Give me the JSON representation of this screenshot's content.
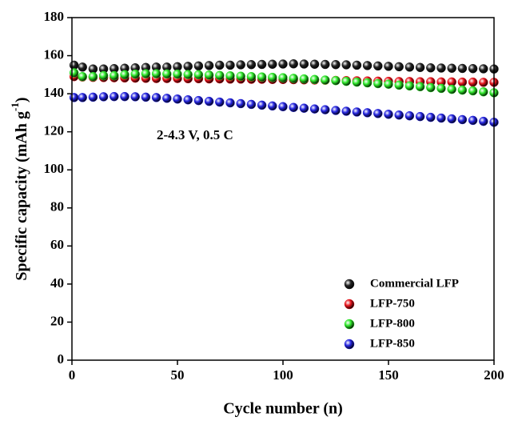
{
  "chart_data": {
    "type": "scatter",
    "xlabel": "Cycle number (n)",
    "ylabel": "Specific capacity (mAh g",
    "ylabel_sup": "-1",
    "ylabel_end": ")",
    "annotation": "2-4.3 V, 0.5 C",
    "legend": "lower right",
    "xlim": [
      0,
      200
    ],
    "xticks": [
      0,
      50,
      100,
      150,
      200
    ],
    "ylim": [
      0,
      180
    ],
    "yticks": [
      0,
      20,
      40,
      60,
      80,
      100,
      120,
      140,
      160,
      180
    ],
    "x": [
      1,
      5,
      10,
      15,
      20,
      25,
      30,
      35,
      40,
      45,
      50,
      55,
      60,
      65,
      70,
      75,
      80,
      85,
      90,
      95,
      100,
      105,
      110,
      115,
      120,
      125,
      130,
      135,
      140,
      145,
      150,
      155,
      160,
      165,
      170,
      175,
      180,
      185,
      190,
      195,
      200
    ],
    "series": [
      {
        "name": "Commercial LFP",
        "color": "#222222",
        "values": [
          155,
          154,
          153,
          153,
          153.2,
          153.4,
          153.6,
          153.8,
          154,
          154,
          154.2,
          154.4,
          154.6,
          154.8,
          155,
          155,
          155.2,
          155.3,
          155.4,
          155.5,
          155.6,
          155.7,
          155.6,
          155.5,
          155.4,
          155.3,
          155.2,
          155,
          154.8,
          154.6,
          154.4,
          154.2,
          154,
          153.8,
          153.6,
          153.5,
          153.4,
          153.3,
          153.2,
          153.1,
          153
        ]
      },
      {
        "name": "LFP-750",
        "color": "#e8141c",
        "values": [
          149,
          148.8,
          148.6,
          148.5,
          148.4,
          148.3,
          148.2,
          148.1,
          148,
          148,
          148,
          147.9,
          147.9,
          147.8,
          147.8,
          147.7,
          147.7,
          147.6,
          147.6,
          147.5,
          147.5,
          147.4,
          147.3,
          147.2,
          147.1,
          147,
          146.9,
          146.8,
          146.7,
          146.6,
          146.5,
          146.4,
          146.4,
          146.3,
          146.3,
          146.2,
          146.2,
          146.1,
          146.1,
          146,
          146
        ]
      },
      {
        "name": "LFP-800",
        "color": "#2ee82a",
        "values": [
          151,
          149,
          149,
          149.5,
          149.5,
          150,
          150.3,
          150.5,
          150.5,
          150.4,
          150.3,
          150.1,
          150,
          149.8,
          149.6,
          149.4,
          149.2,
          149,
          148.8,
          148.6,
          148.4,
          148.1,
          147.8,
          147.5,
          147.2,
          146.9,
          146.5,
          146.1,
          145.7,
          145.3,
          145,
          144.5,
          144.1,
          143.7,
          143.2,
          142.8,
          142.3,
          141.9,
          141.5,
          141,
          140.5
        ]
      },
      {
        "name": "LFP-850",
        "color": "#2424e0",
        "values": [
          138,
          138,
          138.2,
          138.4,
          138.5,
          138.5,
          138.4,
          138.2,
          138,
          137.6,
          137.2,
          136.8,
          136.4,
          136,
          135.6,
          135.2,
          134.8,
          134.4,
          134,
          133.6,
          133.2,
          132.8,
          132.4,
          132,
          131.6,
          131.2,
          130.8,
          130.4,
          130,
          129.6,
          129.2,
          128.8,
          128.4,
          128,
          127.6,
          127.2,
          126.8,
          126.4,
          126,
          125.5,
          125
        ]
      }
    ]
  }
}
